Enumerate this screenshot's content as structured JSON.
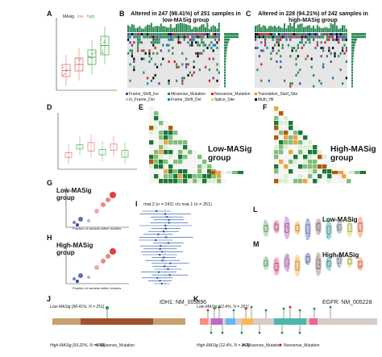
{
  "panels": {
    "A": {
      "letter": "A",
      "legend": [
        "MAsig",
        "low",
        "high"
      ]
    },
    "B": {
      "letter": "B",
      "title": "Altered in 247 (98.41%) of 251 samples in low-MASig group"
    },
    "C": {
      "letter": "C",
      "title": "Altered in 228 (94.21%) of 242 samples in high-MASig group"
    },
    "D": {
      "letter": "D"
    },
    "E": {
      "letter": "E",
      "group_label": "Low-MASig group"
    },
    "F": {
      "letter": "F",
      "group_label": "High-MASig group"
    },
    "G": {
      "letter": "G",
      "group_label": "Low-MASig group",
      "xlabel": "Fraction of variants within clusters"
    },
    "H": {
      "letter": "H",
      "group_label": "High-MASig group",
      "xlabel": "Fraction of variants within clusters"
    },
    "I": {
      "letter": "I",
      "header": "mat.2 (n = 242) v/s mat.1 (n = 251)"
    },
    "J": {
      "letter": "J",
      "top_label": "Low-MASig [98.41%, N = 251]",
      "bottom_label": "High-MASig [93.22%, N = 242]",
      "gene": "IDH1: NM_005896",
      "legend": "Missense_Mutation"
    },
    "K": {
      "letter": "K",
      "top_label": "Low-MASig [12.4%, N = 251]",
      "bottom_label": "High-MASig [12.4%, N = 242]",
      "gene": "EGFR: NM_005228",
      "legend": [
        "Missense_Mutation",
        "Nonsense_Mutation"
      ]
    },
    "L": {
      "letter": "L",
      "group_label": "Low-MASig"
    },
    "M": {
      "letter": "M",
      "group_label": "High-MASig"
    }
  },
  "mutation_legend": [
    "Frame_Shift_Ins",
    "Missense_Mutation",
    "Nonsense_Mutation",
    "Translation_Start_Site",
    "In_Frame_Del",
    "Frame_Shift_Del",
    "Splice_Site",
    "Multi_Hit"
  ],
  "colors": {
    "missense": "#2e8b57",
    "frameshift_ins": "#6a3d9a",
    "nonsense": "#e31a1c",
    "translation": "#ff7f00",
    "inframe_del": "#a6cee3",
    "frameshift_del": "#1f78b4",
    "splice": "#ffd700",
    "multi": "#000000",
    "box_low": "#e57373",
    "box_high": "#4caf50",
    "cooccur": "#1b7837",
    "exclusive": "#b35806"
  }
}
